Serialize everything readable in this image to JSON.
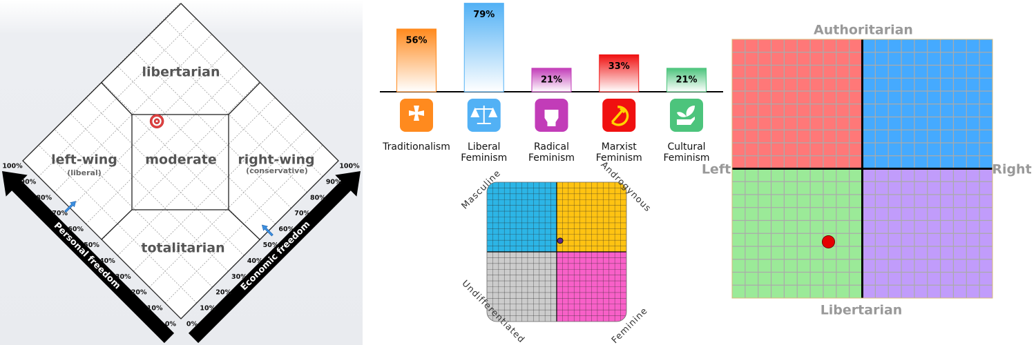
{
  "chart_data": [
    {
      "type": "diamond",
      "regions": [
        "libertarian",
        "left-wing",
        "moderate",
        "right-wing",
        "totalitarian"
      ],
      "region_notes": [
        "(liberal)",
        "(conservative)"
      ],
      "x_label": "Personal freedom",
      "y_label": "Economic freedom",
      "xlim": [
        0,
        100
      ],
      "ylim": [
        0,
        100
      ],
      "xticks": [
        {
          "value": 0,
          "label": "0%"
        },
        {
          "value": 10,
          "label": "10%"
        },
        {
          "value": 20,
          "label": "20%"
        },
        {
          "value": 30,
          "label": "30%"
        },
        {
          "value": 40,
          "label": "40%"
        },
        {
          "value": 50,
          "label": "50%"
        },
        {
          "value": 60,
          "label": "60%"
        },
        {
          "value": 70,
          "label": "70%"
        },
        {
          "value": 80,
          "label": "80%"
        },
        {
          "value": 90,
          "label": "90%"
        },
        {
          "value": 100,
          "label": "100%"
        }
      ],
      "yticks": [
        {
          "value": 0,
          "label": "0%"
        },
        {
          "value": 10,
          "label": "10%"
        },
        {
          "value": 20,
          "label": "20%"
        },
        {
          "value": 30,
          "label": "30%"
        },
        {
          "value": 40,
          "label": "40%"
        },
        {
          "value": 50,
          "label": "50%"
        },
        {
          "value": 60,
          "label": "60%"
        },
        {
          "value": 70,
          "label": "70%"
        },
        {
          "value": 80,
          "label": "80%"
        },
        {
          "value": 90,
          "label": "90%"
        },
        {
          "value": 100,
          "label": "100%"
        }
      ],
      "x": [
        70
      ],
      "values": [
        55
      ],
      "grid": true
    },
    {
      "type": "bar",
      "categories": [
        "Traditionalism",
        "Liberal Feminism",
        "Radical Feminism",
        "Marxist Feminism",
        "Cultural Feminism"
      ],
      "values": [
        56,
        79,
        21,
        33,
        21
      ],
      "value_labels": [
        "56%",
        "79%",
        "21%",
        "33%",
        "21%"
      ],
      "colors": [
        "#ff8a1e",
        "#52b1f5",
        "#c23cb8",
        "#f01010",
        "#4cc47c"
      ],
      "ylim": [
        0,
        80
      ]
    },
    {
      "type": "scatter",
      "quadrant_labels": [
        "Masculine",
        "Androgynous",
        "Undifferentiated",
        "Feminine"
      ],
      "colors": [
        "#2cb5e6",
        "#ffc312",
        "#cccccc",
        "#f860c8"
      ],
      "xlim": [
        -1,
        1
      ],
      "ylim": [
        -1,
        1
      ],
      "x": [
        0.05
      ],
      "values": [
        0.16
      ],
      "grid": true
    },
    {
      "type": "scatter",
      "top_label": "Authoritarian",
      "bottom_label": "Libertarian",
      "left_label": "Left",
      "right_label": "Right",
      "colors": [
        "#ff7878",
        "#45aaff",
        "#9bea98",
        "#c19cfb"
      ],
      "xlim": [
        -10,
        10
      ],
      "ylim": [
        -10,
        10
      ],
      "x": [
        -2.6
      ],
      "values": [
        -5.65
      ],
      "grid": true
    }
  ]
}
